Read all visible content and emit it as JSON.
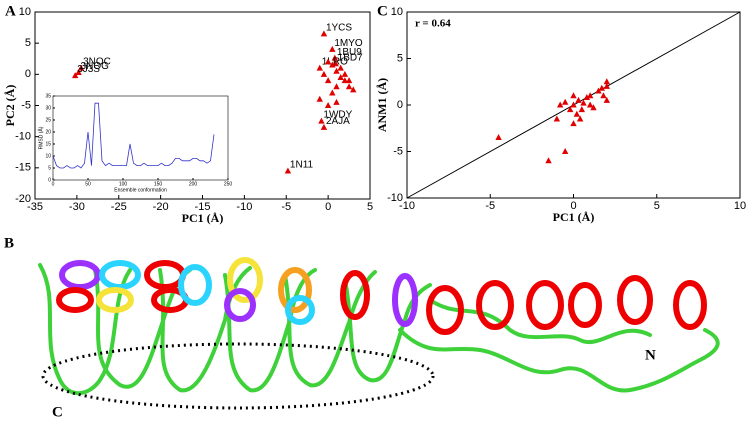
{
  "chart_data": [
    {
      "type": "scatter",
      "panel_label": "A",
      "xlabel": "PC1 (Å)",
      "ylabel": "PC2 (Å)",
      "color": "#e00000",
      "xlim": [
        -35,
        5
      ],
      "ylim": [
        -20,
        10
      ],
      "xticks": [
        -35,
        -30,
        -25,
        -20,
        -15,
        -10,
        -5,
        0,
        5
      ],
      "yticks": [
        -20,
        -15,
        -10,
        -5,
        0,
        5,
        10
      ],
      "x": [
        -0.5,
        0.5,
        0.8,
        0.9,
        -1,
        -29.5,
        -29.8,
        -30.2,
        -0.8,
        -0.5,
        -4.8,
        0,
        0.5,
        1,
        1.5,
        2,
        2.5,
        0,
        1,
        0.5,
        -0.5,
        1.5,
        2,
        -1,
        0,
        3,
        1,
        2.5
      ],
      "y": [
        6.5,
        4,
        2.6,
        1.7,
        1,
        1,
        0.3,
        -0.2,
        -7.5,
        -8.5,
        -15.5,
        2,
        1.5,
        0.5,
        -0.5,
        -1,
        -2,
        -1,
        -2,
        -3,
        0,
        1,
        0,
        -4,
        -5,
        -2.5,
        -4.5,
        -1
      ],
      "labels": [
        "1YCS",
        "1MYO",
        "1BU9",
        "1BD7",
        "1LRO",
        "3NOC",
        "3NOG",
        "3J3S",
        "1WDY",
        "2AJA",
        "1N11",
        null,
        null,
        null,
        null,
        null,
        null,
        null,
        null,
        null,
        null,
        null,
        null,
        null,
        null,
        null,
        null,
        null
      ]
    },
    {
      "type": "line",
      "xlabel": "Ensemble conformation",
      "ylabel": "RMSD (Å)",
      "color": "#3333cc",
      "xlim": [
        0,
        250
      ],
      "ylim": [
        0,
        35
      ],
      "xticks": [
        0,
        50,
        100,
        150,
        200,
        250
      ],
      "yticks": [
        0,
        5,
        10,
        15,
        20,
        25,
        30,
        35
      ],
      "x": [
        0,
        5,
        10,
        15,
        20,
        25,
        30,
        35,
        40,
        45,
        50,
        55,
        60,
        65,
        70,
        75,
        80,
        85,
        90,
        95,
        100,
        105,
        110,
        115,
        120,
        125,
        130,
        135,
        140,
        145,
        150,
        155,
        160,
        165,
        170,
        175,
        180,
        185,
        190,
        195,
        200,
        205,
        210,
        215,
        220,
        225,
        230
      ],
      "values": [
        10,
        6,
        5,
        5,
        6,
        5,
        5,
        6,
        5,
        7,
        20,
        6,
        32,
        32,
        8,
        6,
        7,
        6,
        6,
        6,
        6,
        6,
        15,
        7,
        6,
        6,
        7,
        6,
        6,
        6,
        6,
        7,
        6,
        6,
        7,
        9,
        9,
        8,
        8,
        8,
        9,
        9,
        8,
        8,
        7,
        8,
        19
      ]
    },
    {
      "type": "scatter",
      "panel_label": "C",
      "annotation": "r = 0.64",
      "xlabel": "PC1 (Å)",
      "ylabel": "ANM1 (Å)",
      "color": "#e00000",
      "diagonal": true,
      "xlim": [
        -10,
        10
      ],
      "ylim": [
        -10,
        10
      ],
      "xticks": [
        -10,
        -5,
        0,
        5,
        10
      ],
      "yticks": [
        -10,
        -5,
        0,
        5,
        10
      ],
      "x": [
        -4.5,
        -1.5,
        -0.5,
        0,
        0,
        0.3,
        0.5,
        -0.5,
        1,
        1.5,
        2,
        1.8,
        2,
        0.2,
        -0.2,
        1,
        0.6,
        1.2,
        0.8,
        1.7,
        2,
        -1,
        0,
        0.4,
        -0.8
      ],
      "y": [
        -3.5,
        -6,
        -5,
        -2,
        0,
        0.5,
        -0.5,
        0.3,
        0,
        1.5,
        2,
        1,
        0.5,
        -1,
        -0.5,
        1,
        0.2,
        -0.3,
        0.8,
        1.8,
        2.5,
        -1.5,
        1,
        -1.5,
        0
      ]
    }
  ],
  "structure": {
    "panel_label": "B",
    "c_terminus": "C",
    "n_terminus": "N"
  }
}
